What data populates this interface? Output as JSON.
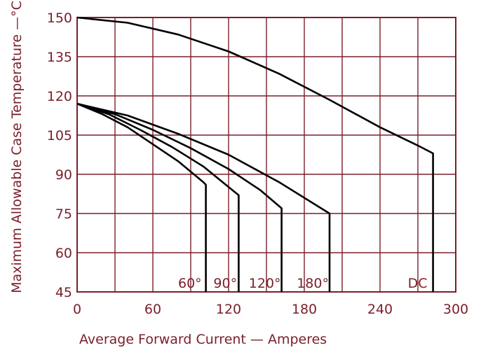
{
  "chart_data": {
    "type": "line",
    "title": "",
    "xlabel": "Average Forward Current — Amperes",
    "ylabel": "Maximum Allowable Case Temperature —°C",
    "xlim": [
      0,
      300
    ],
    "ylim": [
      45,
      150
    ],
    "xticks": [
      0,
      60,
      120,
      180,
      240,
      300
    ],
    "yticks": [
      45,
      60,
      75,
      90,
      105,
      120,
      135,
      150
    ],
    "x_tick_labels": [
      "0",
      "60",
      "120",
      "180",
      "240",
      "300"
    ],
    "y_tick_labels": [
      "45",
      "60",
      "75",
      "90",
      "105",
      "120",
      "135",
      "150"
    ],
    "grid": true,
    "grid_x": [
      0,
      30,
      60,
      90,
      120,
      150,
      180,
      210,
      240,
      270,
      300
    ],
    "grid_y": [
      45,
      60,
      75,
      90,
      105,
      120,
      135,
      150
    ],
    "colors": {
      "axis": "#7a1f2b",
      "curve": "#000000"
    },
    "series": [
      {
        "name": "60°",
        "label_x": 80,
        "points": [
          [
            0,
            117
          ],
          [
            20,
            113
          ],
          [
            40,
            108
          ],
          [
            60,
            101.5
          ],
          [
            80,
            95
          ],
          [
            100,
            87
          ],
          [
            102,
            86
          ],
          [
            102,
            45
          ]
        ]
      },
      {
        "name": "90°",
        "label_x": 108,
        "points": [
          [
            0,
            117
          ],
          [
            25,
            113
          ],
          [
            50,
            107
          ],
          [
            75,
            100.5
          ],
          [
            100,
            93
          ],
          [
            128,
            82
          ],
          [
            128,
            45
          ]
        ]
      },
      {
        "name": "120°",
        "label_x": 136,
        "points": [
          [
            0,
            117
          ],
          [
            30,
            113
          ],
          [
            60,
            107
          ],
          [
            90,
            100
          ],
          [
            120,
            92
          ],
          [
            145,
            84
          ],
          [
            162,
            77
          ],
          [
            162,
            45
          ]
        ]
      },
      {
        "name": "180°",
        "label_x": 174,
        "points": [
          [
            0,
            117
          ],
          [
            40,
            112.5
          ],
          [
            80,
            105.5
          ],
          [
            120,
            97.5
          ],
          [
            160,
            87
          ],
          [
            200,
            75
          ],
          [
            200,
            45
          ]
        ]
      },
      {
        "name": "DC",
        "label_x": 262,
        "points": [
          [
            0,
            150
          ],
          [
            40,
            148
          ],
          [
            80,
            143.5
          ],
          [
            120,
            137
          ],
          [
            160,
            128.5
          ],
          [
            200,
            118.5
          ],
          [
            240,
            108
          ],
          [
            270,
            101
          ],
          [
            282,
            98
          ],
          [
            282,
            45
          ]
        ]
      }
    ]
  }
}
